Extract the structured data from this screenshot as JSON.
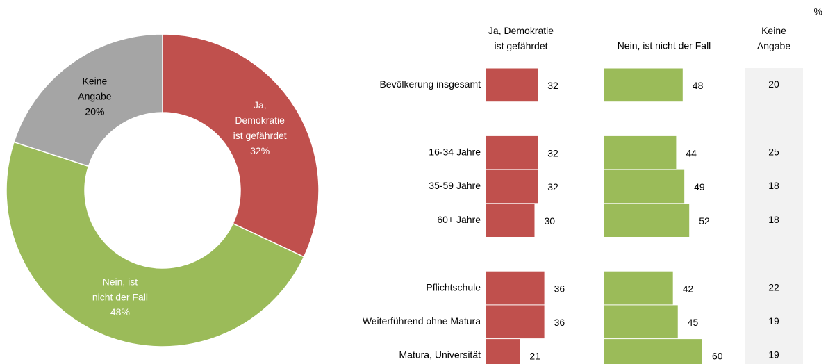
{
  "chart_data": [
    {
      "type": "donut",
      "categories": [
        "Ja,\nDemokratie\nist gefährdet",
        "Nein, ist\nnicht der Fall",
        "Keine\nAngabe"
      ],
      "values": [
        32,
        48,
        20
      ],
      "value_labels": [
        "32%",
        "48%",
        "20%"
      ],
      "colors": [
        "#c0504d",
        "#9bbb59",
        "#a5a5a5"
      ],
      "text_colors": [
        "#ffffff",
        "#ffffff",
        "#000000"
      ]
    },
    {
      "type": "barh_table",
      "unit": "%",
      "categories": [
        "Bevölkerung insgesamt",
        null,
        "16-34 Jahre",
        "35-59 Jahre",
        "60+ Jahre",
        null,
        "Pflichtschule",
        "Weiterführend ohne Matura",
        "Matura, Universität"
      ],
      "series": [
        {
          "name": "Ja, Demokratie\nist gefährdet",
          "color": "#c0504d",
          "values": [
            32,
            null,
            32,
            32,
            30,
            null,
            36,
            36,
            21
          ]
        },
        {
          "name": "Nein, ist nicht der Fall",
          "color": "#9bbb59",
          "values": [
            48,
            null,
            44,
            49,
            52,
            null,
            42,
            45,
            60
          ]
        },
        {
          "name": "Keine\nAngabe",
          "values": [
            20,
            null,
            25,
            18,
            18,
            null,
            22,
            19,
            19
          ]
        }
      ]
    }
  ]
}
